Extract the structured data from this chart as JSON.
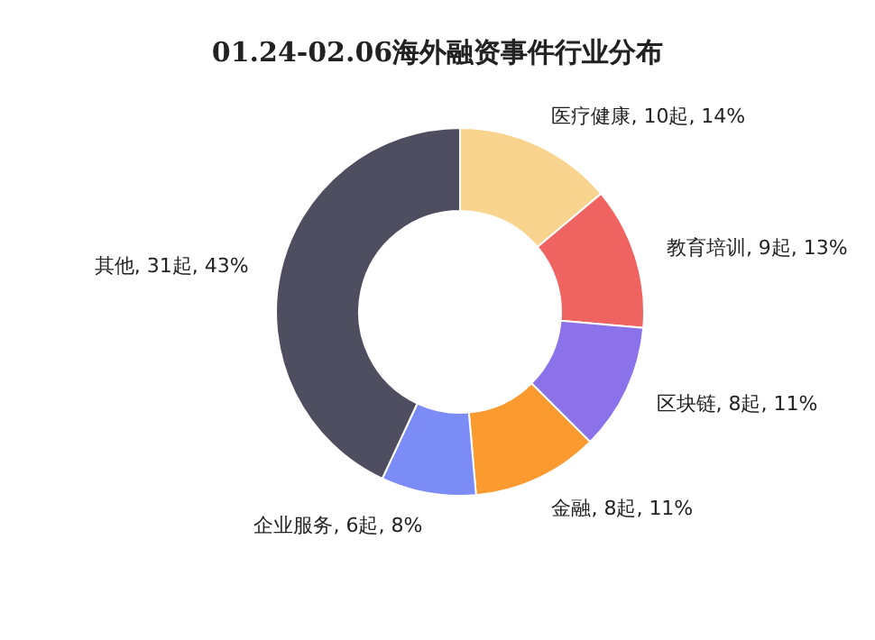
{
  "chart_data": {
    "type": "donut",
    "title": "01.24-02.06海外融资事件行业分布",
    "categories": [
      "医疗健康",
      "教育培训",
      "区块链",
      "金融",
      "企业服务",
      "其他"
    ],
    "values": [
      10,
      9,
      8,
      8,
      6,
      31
    ],
    "value_labels": [
      "10起, 14%",
      "9起, 13%",
      "8起, 11%",
      "8起, 11%",
      "6起, 8%",
      "31起, 43%"
    ],
    "colors": [
      "#f8d48e",
      "#ef6461",
      "#8c72ea",
      "#fb9a2e",
      "#7b8cf7",
      "#4e4e60"
    ]
  }
}
